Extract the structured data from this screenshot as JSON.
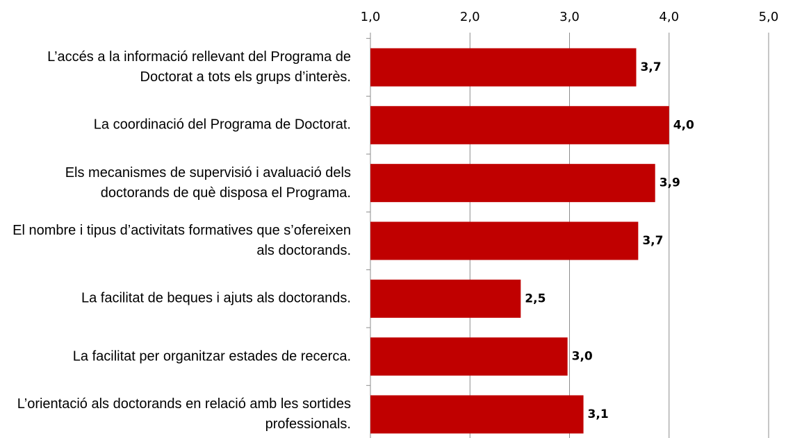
{
  "chart_data": {
    "type": "bar",
    "orientation": "horizontal",
    "categories": [
      "L’accés a la informació rellevant del Programa de Doctorat a tots els grups d’interès.",
      "La coordinació del Programa de Doctorat.",
      "Els mecanismes de supervisió i avaluació dels doctorands de què disposa el Programa.",
      "El nombre i tipus d’activitats formatives que s’ofereixen als doctorands.",
      "La facilitat de beques i ajuts als doctorands.",
      "La facilitat per organitzar estades de recerca.",
      "L’orientació als doctorands en relació amb les sortides professionals."
    ],
    "values": [
      3.67,
      4.0,
      3.86,
      3.69,
      2.51,
      2.98,
      3.14
    ],
    "value_labels": [
      "3,7",
      "4,0",
      "3,9",
      "3,7",
      "2,5",
      "3,0",
      "3,1"
    ],
    "color": "#c00000",
    "xlim": [
      1,
      5
    ],
    "xticks": [
      {
        "value": 1,
        "label": "1,0"
      },
      {
        "value": 2,
        "label": "2,0"
      },
      {
        "value": 3,
        "label": "3,0"
      },
      {
        "value": 4,
        "label": "4,0"
      },
      {
        "value": 5,
        "label": "5,0"
      }
    ],
    "grid": true
  }
}
